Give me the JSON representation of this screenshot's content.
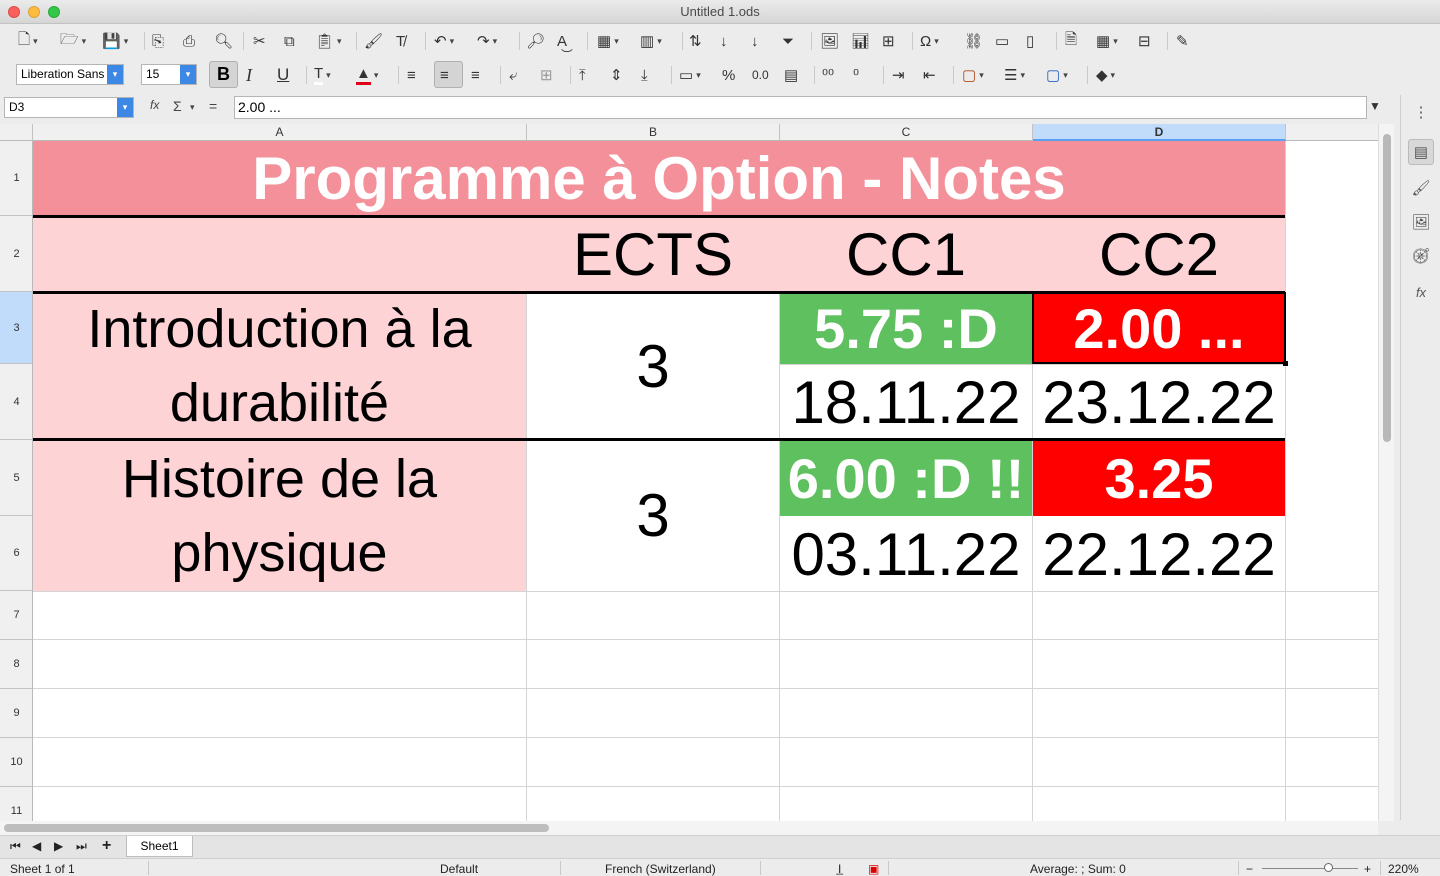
{
  "window": {
    "title": "Untitled 1.ods"
  },
  "toolbar": {
    "font_name": "Liberation Sans",
    "font_size": "15",
    "bold_label": "B",
    "italic_label": "I",
    "underline_label": "U",
    "percent_label": "%",
    "number_label": "0.0"
  },
  "formula": {
    "cell_ref": "D3",
    "fx_label": "fx",
    "sum_label": "Σ",
    "equals_label": "=",
    "value": "2.00 ..."
  },
  "columns": [
    "A",
    "B",
    "C",
    "D"
  ],
  "rows": [
    "1",
    "2",
    "3",
    "4",
    "5",
    "6",
    "7",
    "8",
    "9",
    "10",
    "11"
  ],
  "sheet": {
    "title": "Programme à Option - Notes",
    "headers": {
      "ects": "ECTS",
      "cc1": "CC1",
      "cc2": "CC2"
    },
    "courses": [
      {
        "name": "Introduction à la durabilité",
        "ects": "3",
        "cc1_grade": "5.75 :D",
        "cc2_grade": "2.00 ...",
        "cc1_date": "18.11.22",
        "cc2_date": "23.12.22"
      },
      {
        "name": "Histoire de la physique",
        "ects": "3",
        "cc1_grade": "6.00 :D !!",
        "cc2_grade": "3.25",
        "cc1_date": "03.11.22",
        "cc2_date": "22.12.22"
      }
    ]
  },
  "tabs": {
    "sheet1": "Sheet1"
  },
  "status": {
    "sheet_pos": "Sheet 1 of 1",
    "style": "Default",
    "language": "French (Switzerland)",
    "summary": "Average: ; Sum: 0",
    "zoom": "220%",
    "zoom_minus": "−",
    "zoom_plus": "+"
  },
  "colors": {
    "title_bg": "#f4909a",
    "row_bg": "#fdd3d6",
    "green": "#5ec05e",
    "red": "#ff0000",
    "selection": "#c1dcfb"
  }
}
